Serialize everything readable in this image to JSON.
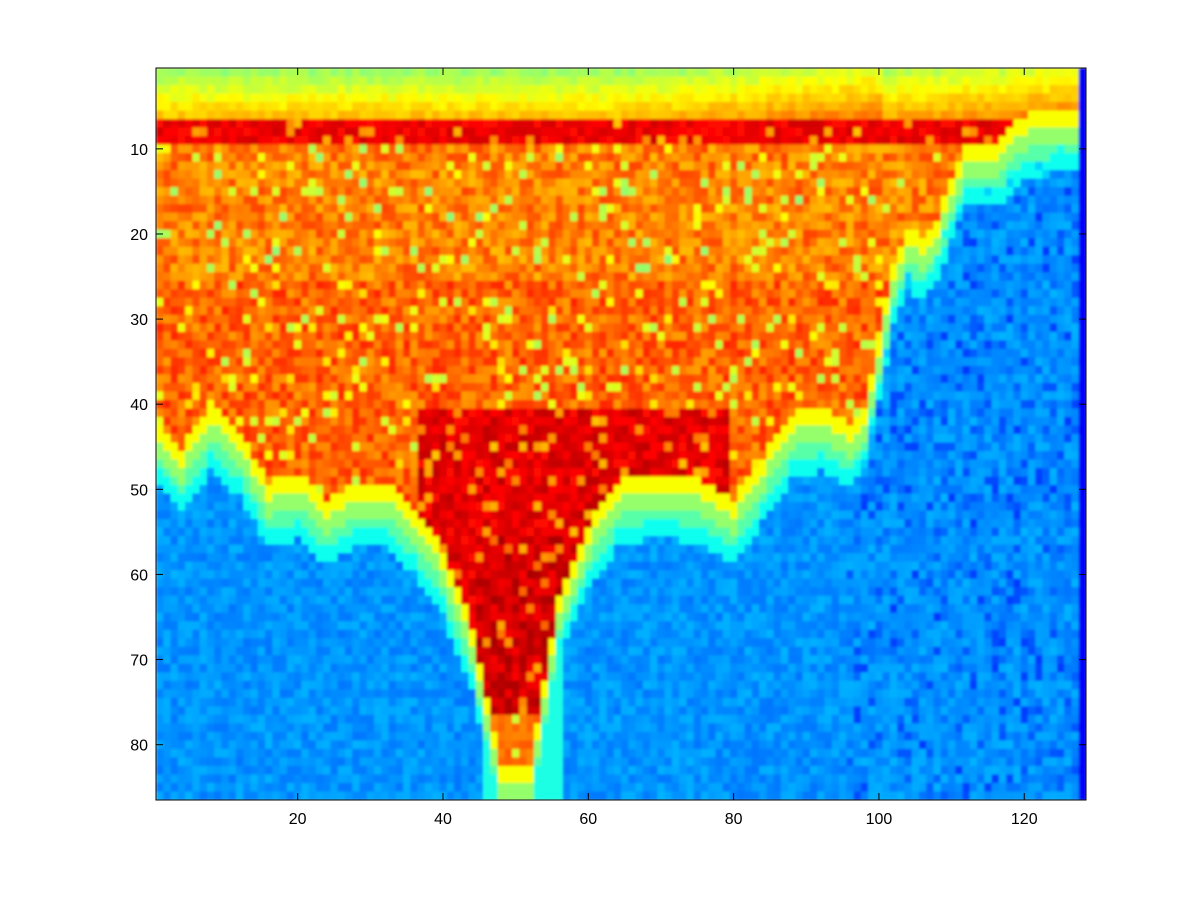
{
  "chart_data": {
    "type": "heatmap",
    "title": "",
    "xlabel": "",
    "ylabel": "",
    "xlim": [
      0.5,
      128.5
    ],
    "ylim": [
      0.5,
      86.5
    ],
    "y_reversed": true,
    "grid": false,
    "legend": "none",
    "colormap": "jet",
    "x_ticks": [
      20,
      40,
      60,
      80,
      100,
      120
    ],
    "y_ticks": [
      10,
      20,
      30,
      40,
      50,
      60,
      70,
      80
    ],
    "x_tick_labels": [
      "20",
      "40",
      "60",
      "80",
      "100",
      "120"
    ],
    "y_tick_labels": [
      "10",
      "20",
      "30",
      "40",
      "50",
      "60",
      "70",
      "80"
    ],
    "n_cols": 128,
    "n_rows": 86,
    "value_range": [
      0,
      1
    ],
    "description_of_values": "Hot region (red, ~0.9) in upper and central area forming a V-shape narrowing to columns ~48-55 at the bottom; cold region (blue, ~0.2-0.3) below a wavy boundary and on the right side; cyan/yellow band at top rows 1-6; dark blue last column.",
    "boundary_x": [
      1,
      4,
      8,
      12,
      16,
      20,
      24,
      28,
      32,
      36,
      40,
      44,
      48,
      52,
      56,
      60,
      64,
      68,
      72,
      76,
      80,
      84,
      88,
      92,
      96,
      98,
      100,
      102,
      104,
      106,
      108,
      110,
      112,
      116,
      120,
      124,
      128
    ],
    "boundary_y": [
      46,
      49,
      44,
      47,
      53,
      52,
      55,
      53,
      53,
      56,
      61,
      70,
      86,
      86,
      66,
      58,
      53,
      52,
      52,
      53,
      55,
      50,
      45,
      44,
      46,
      44,
      36,
      27,
      23,
      24,
      22,
      17,
      13,
      13,
      10,
      9,
      9
    ],
    "top_band_rows": 6,
    "last_col_value": 0.12
  }
}
